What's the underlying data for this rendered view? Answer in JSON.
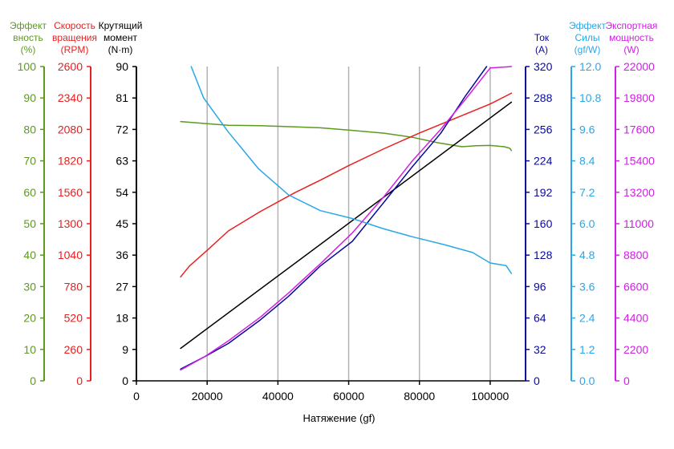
{
  "chart_data": {
    "type": "line",
    "xlabel": "Натяжение (gf)",
    "xlim": [
      0,
      110000
    ],
    "xticks": [
      0,
      20000,
      40000,
      60000,
      80000,
      100000
    ],
    "grid": true,
    "axes": [
      {
        "id": "eff",
        "title": [
          "Эффект",
          "вность",
          "(%)"
        ],
        "color": "#5b9a1f",
        "min": 0,
        "max": 100,
        "ticks": [
          "0",
          "10",
          "20",
          "30",
          "40",
          "50",
          "60",
          "70",
          "80",
          "90",
          "100"
        ]
      },
      {
        "id": "rpm",
        "title": [
          "Скорость",
          "вращения",
          "(RPM)"
        ],
        "color": "#e8201f",
        "min": 0,
        "max": 2600,
        "ticks": [
          "0",
          "260",
          "520",
          "780",
          "1040",
          "1300",
          "1560",
          "1820",
          "2080",
          "2340",
          "2600"
        ]
      },
      {
        "id": "torque",
        "title": [
          "Крутящий",
          "момент",
          "(N·m)"
        ],
        "color": "#000000",
        "min": 0,
        "max": 90,
        "ticks": [
          "0",
          "9",
          "18",
          "27",
          "36",
          "45",
          "54",
          "63",
          "72",
          "81",
          "90"
        ]
      },
      {
        "id": "current",
        "title": [
          "Ток",
          "(A)"
        ],
        "color": "#0a0a9a",
        "min": 0,
        "max": 320,
        "ticks": [
          "0",
          "32",
          "64",
          "96",
          "128",
          "160",
          "192",
          "224",
          "256",
          "288",
          "320"
        ]
      },
      {
        "id": "force",
        "title": [
          "Эффект",
          "Силы",
          "(gf/W)"
        ],
        "color": "#2aa7e8",
        "min": 0,
        "max": 12,
        "ticks": [
          "0.0",
          "1.2",
          "2.4",
          "3.6",
          "4.8",
          "6.0",
          "7.2",
          "8.4",
          "9.6",
          "10.8",
          "12.0"
        ]
      },
      {
        "id": "power",
        "title": [
          "Экспортная",
          "мощность",
          "(W)"
        ],
        "color": "#d21ee6",
        "min": 0,
        "max": 22000,
        "ticks": [
          "0",
          "2200",
          "4400",
          "6600",
          "8800",
          "11000",
          "13200",
          "15400",
          "17600",
          "19800",
          "22000"
        ]
      }
    ],
    "series": [
      {
        "axis": "eff",
        "color": "#5b9a1f",
        "x": [
          12500,
          20000,
          26000,
          35000,
          45000,
          52000,
          60000,
          70000,
          78000,
          85000,
          92000,
          96000,
          100000,
          104000,
          105500,
          106000
        ],
        "y": [
          82.5,
          81.8,
          81.3,
          81.2,
          80.8,
          80.5,
          79.8,
          78.8,
          77.5,
          75.8,
          74.5,
          74.8,
          74.9,
          74.5,
          74.0,
          73.3
        ]
      },
      {
        "axis": "rpm",
        "color": "#e8201f",
        "x": [
          12500,
          15000,
          20000,
          26000,
          35000,
          45000,
          52000,
          60000,
          70000,
          80000,
          90000,
          100000,
          106000
        ],
        "y": [
          860,
          950,
          1080,
          1240,
          1400,
          1560,
          1660,
          1780,
          1920,
          2050,
          2170,
          2290,
          2380
        ]
      },
      {
        "axis": "torque",
        "color": "#000000",
        "x": [
          12500,
          106000
        ],
        "y": [
          9.3,
          79.8
        ]
      },
      {
        "axis": "current",
        "color": "#0a0a9a",
        "x": [
          12500,
          19000,
          26000,
          35000,
          43000,
          52000,
          61000,
          70000,
          78000,
          86000,
          93000,
          99000
        ],
        "y": [
          12,
          24,
          38,
          62,
          86,
          117,
          142,
          182,
          218,
          252,
          290,
          320
        ]
      },
      {
        "axis": "force",
        "color": "#2aa7e8",
        "x": [
          15500,
          19000,
          26000,
          34500,
          43000,
          52000,
          61000,
          70000,
          78000,
          87000,
          95000,
          100000,
          104500,
          106000
        ],
        "y": [
          12.0,
          10.8,
          9.5,
          8.1,
          7.1,
          6.5,
          6.2,
          5.8,
          5.5,
          5.2,
          4.9,
          4.5,
          4.4,
          4.1
        ]
      },
      {
        "axis": "power",
        "color": "#d21ee6",
        "x": [
          12500,
          19000,
          26000,
          35000,
          43000,
          52000,
          61000,
          70000,
          78000,
          86000,
          93000,
          100000,
          106000
        ],
        "y": [
          760,
          1650,
          2800,
          4450,
          6150,
          8200,
          10350,
          12900,
          15400,
          17600,
          19700,
          21900,
          22000
        ]
      }
    ]
  }
}
